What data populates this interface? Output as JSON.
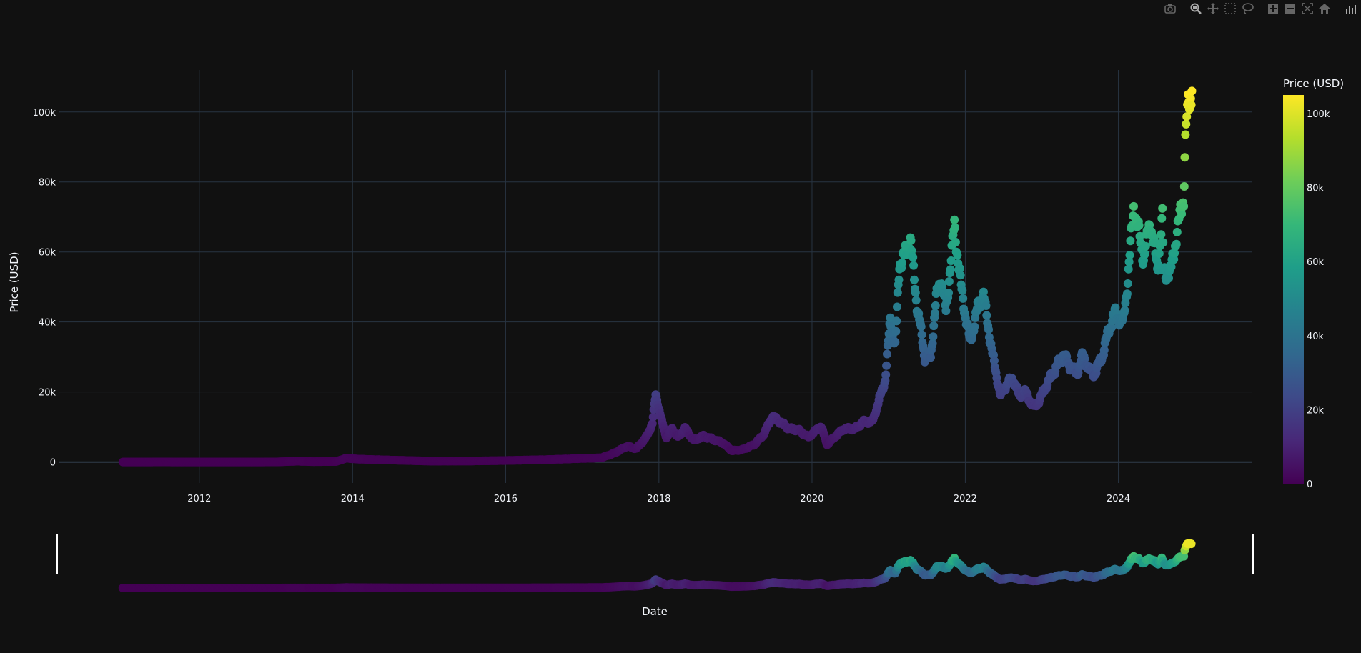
{
  "toolbar": {
    "buttons": [
      {
        "name": "camera-icon",
        "label": "Download plot as a png"
      },
      {
        "name": "zoom-icon",
        "label": "Zoom"
      },
      {
        "name": "pan-icon",
        "label": "Pan"
      },
      {
        "name": "box-select-icon",
        "label": "Box Select"
      },
      {
        "name": "lasso-select-icon",
        "label": "Lasso Select"
      },
      {
        "name": "zoom-in-icon",
        "label": "Zoom in"
      },
      {
        "name": "zoom-out-icon",
        "label": "Zoom out"
      },
      {
        "name": "autoscale-icon",
        "label": "Autoscale"
      },
      {
        "name": "reset-axes-icon",
        "label": "Reset axes"
      },
      {
        "name": "plotly-logo-icon",
        "label": "Produced with Plotly"
      }
    ]
  },
  "chart_data": {
    "type": "scatter",
    "title": "",
    "xlabel": "Date",
    "ylabel": "Price (USD)",
    "xlim": [
      "2010-03-01",
      "2025-10-01"
    ],
    "ylim": [
      -6000,
      112000
    ],
    "x_ticks": [
      "2012-01-01",
      "2014-01-01",
      "2016-01-01",
      "2018-01-01",
      "2020-01-01",
      "2022-01-01",
      "2024-01-01"
    ],
    "x_tick_labels": [
      "2012",
      "2014",
      "2016",
      "2018",
      "2020",
      "2022",
      "2024"
    ],
    "y_ticks": [
      0,
      20000,
      40000,
      60000,
      80000,
      100000
    ],
    "y_tick_labels": [
      "0",
      "20k",
      "40k",
      "60k",
      "80k",
      "100k"
    ],
    "grid": true,
    "colorbar": {
      "title": "Price (USD)",
      "colorscale": "Viridis",
      "range": [
        0,
        105000
      ],
      "ticks": [
        0,
        20000,
        40000,
        60000,
        80000,
        100000
      ],
      "tick_labels": [
        "0",
        "20k",
        "40k",
        "60k",
        "80k",
        "100k"
      ]
    },
    "range_slider": true,
    "series": [
      {
        "x": [
          "2011-01-01",
          "2011-07-01",
          "2012-01-01",
          "2012-07-01",
          "2013-01-01",
          "2013-04-10",
          "2013-07-01",
          "2013-10-15",
          "2013-12-01",
          "2014-01-15",
          "2014-06-01",
          "2015-01-15",
          "2015-07-01",
          "2016-01-01",
          "2016-07-01",
          "2017-01-01",
          "2017-04-01",
          "2017-06-01",
          "2017-08-01",
          "2017-09-15",
          "2017-11-01",
          "2017-12-01",
          "2017-12-17",
          "2018-01-15",
          "2018-02-06",
          "2018-03-05",
          "2018-04-01",
          "2018-05-05",
          "2018-06-15",
          "2018-08-01",
          "2018-09-15",
          "2018-11-01",
          "2018-12-15",
          "2019-02-01",
          "2019-04-01",
          "2019-05-15",
          "2019-06-26",
          "2019-08-01",
          "2019-09-15",
          "2019-10-26",
          "2019-12-15",
          "2020-02-13",
          "2020-03-13",
          "2020-04-15",
          "2020-06-01",
          "2020-07-25",
          "2020-09-01",
          "2020-10-15",
          "2020-11-15",
          "2020-12-15",
          "2021-01-08",
          "2021-02-01",
          "2021-02-21",
          "2021-03-15",
          "2021-04-14",
          "2021-05-15",
          "2021-06-22",
          "2021-07-20",
          "2021-08-15",
          "2021-09-07",
          "2021-10-01",
          "2021-11-10",
          "2021-12-15",
          "2022-01-24",
          "2022-03-01",
          "2022-03-29",
          "2022-05-10",
          "2022-06-18",
          "2022-07-15",
          "2022-08-15",
          "2022-09-15",
          "2022-10-15",
          "2022-11-21",
          "2022-12-15",
          "2023-01-15",
          "2023-02-15",
          "2023-03-15",
          "2023-04-14",
          "2023-05-15",
          "2023-06-15",
          "2023-07-15",
          "2023-08-18",
          "2023-09-11",
          "2023-10-20",
          "2023-11-15",
          "2023-12-15",
          "2024-01-23",
          "2024-02-15",
          "2024-03-14",
          "2024-04-15",
          "2024-05-01",
          "2024-06-01",
          "2024-07-05",
          "2024-07-29",
          "2024-08-05",
          "2024-09-06",
          "2024-10-01",
          "2024-10-29",
          "2024-11-08",
          "2024-11-13",
          "2024-11-22",
          "2024-12-05",
          "2024-12-17"
        ],
        "y": [
          0,
          15,
          5,
          7,
          14,
          230,
          90,
          150,
          1100,
          850,
          600,
          250,
          280,
          430,
          660,
          1000,
          1200,
          2500,
          4500,
          3800,
          7000,
          11000,
          19400,
          11500,
          7000,
          9500,
          7000,
          9600,
          6200,
          7400,
          6500,
          5500,
          3200,
          3500,
          5000,
          7800,
          13000,
          11500,
          9500,
          9200,
          7100,
          10300,
          5000,
          7000,
          9500,
          9500,
          11500,
          11500,
          17500,
          23500,
          40500,
          33000,
          57000,
          58500,
          63500,
          45000,
          30000,
          30000,
          46500,
          52500,
          43000,
          67500,
          48500,
          34000,
          44000,
          47500,
          31000,
          18900,
          22000,
          24000,
          19000,
          20000,
          15800,
          17000,
          21000,
          24500,
          27500,
          30500,
          27500,
          25000,
          30500,
          26000,
          25200,
          31000,
          37500,
          42500,
          39500,
          52000,
          73000,
          63000,
          58000,
          69000,
          55000,
          69500,
          54000,
          54000,
          63500,
          73000,
          76000,
          88000,
          98000,
          103000,
          106000
        ]
      }
    ]
  }
}
